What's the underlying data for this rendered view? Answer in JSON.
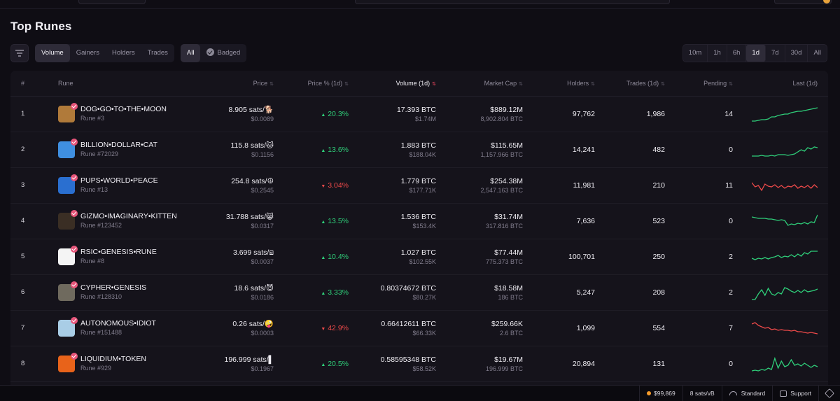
{
  "page_title": "Top Runes",
  "sort_tabs": [
    "Volume",
    "Gainers",
    "Holders",
    "Trades"
  ],
  "active_sort_tab": "Volume",
  "filter_tabs": [
    "All",
    "Badged"
  ],
  "active_filter_tab": "All",
  "time_ranges": [
    "10m",
    "1h",
    "6h",
    "1d",
    "7d",
    "30d",
    "All"
  ],
  "active_time_range": "1d",
  "columns": {
    "idx": "#",
    "rune": "Rune",
    "price": "Price",
    "price_pct": "Price % (1d)",
    "volume": "Volume (1d)",
    "market_cap": "Market Cap",
    "holders": "Holders",
    "trades": "Trades (1d)",
    "pending": "Pending",
    "last": "Last (1d)"
  },
  "rows": [
    {
      "idx": "1",
      "name": "DOG•GO•TO•THE•MOON",
      "rune_no": "Rune #3",
      "price_sats": "8.905 sats/🐕",
      "price_usd": "$0.0089",
      "pct": "20.3%",
      "dir": "up",
      "vol_btc": "17.393 BTC",
      "vol_usd": "$1.74M",
      "mcap_usd": "$889.12M",
      "mcap_btc": "8,902.804 BTC",
      "holders": "97,762",
      "trades": "1,986",
      "pending": "14",
      "avatar_color": "#b07a3a",
      "trend": "up"
    },
    {
      "idx": "2",
      "name": "BILLION•DOLLAR•CAT",
      "rune_no": "Rune #72029",
      "price_sats": "115.8 sats/🐱",
      "price_usd": "$0.1156",
      "pct": "13.6%",
      "dir": "up",
      "vol_btc": "1.883 BTC",
      "vol_usd": "$188.04K",
      "mcap_usd": "$115.65M",
      "mcap_btc": "1,157.966 BTC",
      "holders": "14,241",
      "trades": "482",
      "pending": "0",
      "avatar_color": "#3f8fe0",
      "trend": "up"
    },
    {
      "idx": "3",
      "name": "PUPS•WORLD•PEACE",
      "rune_no": "Rune #13",
      "price_sats": "254.8 sats/☮",
      "price_usd": "$0.2545",
      "pct": "3.04%",
      "dir": "down",
      "vol_btc": "1.779 BTC",
      "vol_usd": "$177.71K",
      "mcap_usd": "$254.38M",
      "mcap_btc": "2,547.163 BTC",
      "holders": "11,981",
      "trades": "210",
      "pending": "11",
      "avatar_color": "#2a6fd0",
      "trend": "down"
    },
    {
      "idx": "4",
      "name": "GIZMO•IMAGINARY•KITTEN",
      "rune_no": "Rune #123452",
      "price_sats": "31.788 sats/😸",
      "price_usd": "$0.0317",
      "pct": "13.5%",
      "dir": "up",
      "vol_btc": "1.536 BTC",
      "vol_usd": "$153.4K",
      "mcap_usd": "$31.74M",
      "mcap_btc": "317.816 BTC",
      "holders": "7,636",
      "trades": "523",
      "pending": "0",
      "avatar_color": "#3a2e24",
      "trend": "up"
    },
    {
      "idx": "5",
      "name": "RSIC•GENESIS•RUNE",
      "rune_no": "Rune #8",
      "price_sats": "3.699 sats/⧈",
      "price_usd": "$0.0037",
      "pct": "10.4%",
      "dir": "up",
      "vol_btc": "1.027 BTC",
      "vol_usd": "$102.55K",
      "mcap_usd": "$77.44M",
      "mcap_btc": "775.373 BTC",
      "holders": "100,701",
      "trades": "250",
      "pending": "2",
      "avatar_color": "#f4f4f4",
      "trend": "up"
    },
    {
      "idx": "6",
      "name": "CYPHER•GENESIS",
      "rune_no": "Rune #128310",
      "price_sats": "18.6 sats/😈",
      "price_usd": "$0.0186",
      "pct": "3.33%",
      "dir": "up",
      "vol_btc": "0.80374672 BTC",
      "vol_usd": "$80.27K",
      "mcap_usd": "$18.58M",
      "mcap_btc": "186 BTC",
      "holders": "5,247",
      "trades": "208",
      "pending": "2",
      "avatar_color": "#6f6a5e",
      "trend": "up"
    },
    {
      "idx": "7",
      "name": "AUTONOMOUS•IDIOT",
      "rune_no": "Rune #151488",
      "price_sats": "0.26 sats/🤪",
      "price_usd": "$0.0003",
      "pct": "42.9%",
      "dir": "down",
      "vol_btc": "0.66412611 BTC",
      "vol_usd": "$66.33K",
      "mcap_usd": "$259.66K",
      "mcap_btc": "2.6 BTC",
      "holders": "1,099",
      "trades": "554",
      "pending": "7",
      "avatar_color": "#a9cde6",
      "trend": "down"
    },
    {
      "idx": "8",
      "name": "LIQUIDIUM•TOKEN",
      "rune_no": "Rune #929",
      "price_sats": "196.999 sats/▌",
      "price_usd": "$0.1967",
      "pct": "20.5%",
      "dir": "up",
      "vol_btc": "0.58595348 BTC",
      "vol_usd": "$58.52K",
      "mcap_usd": "$19.67M",
      "mcap_btc": "196.999 BTC",
      "holders": "20,894",
      "trades": "131",
      "pending": "0",
      "avatar_color": "#e8631a",
      "trend": "up"
    }
  ],
  "footer": {
    "btc_price": "$99,869",
    "fee_rate": "8 sats/vB",
    "mode": "Standard",
    "support": "Support"
  },
  "colors": {
    "up": "#2fcf7a",
    "down": "#ef4a4a",
    "badge": "#e7557a",
    "accent_dot": "#f59b2a"
  }
}
